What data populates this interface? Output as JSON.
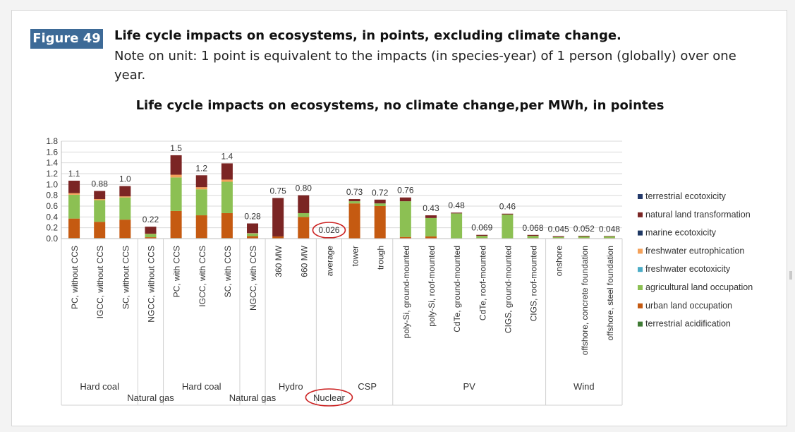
{
  "figure": {
    "badge": "Figure 49",
    "title": "Life cycle impacts on ecosystems, in points, excluding climate change.",
    "note": "Note on unit: 1 point is equivalent to the impacts (in species-year) of 1 person (globally) over one year."
  },
  "chart_data": {
    "type": "bar",
    "stacked": true,
    "title": "Life cycle impacts on ecosystems, no climate change,per MWh, in pointes",
    "ylim": [
      0,
      1.8
    ],
    "yticks": [
      "0.0",
      "0.2",
      "0.4",
      "0.6",
      "0.8",
      "1.0",
      "1.2",
      "1.4",
      "1.6",
      "1.8"
    ],
    "grid": true,
    "legend_position": "right",
    "categories": [
      "PC, without CCS",
      "IGCC, without CCS",
      "SC, without CCS",
      "NGCC, without CCS",
      "PC, with CCS",
      "IGCC, with CCS",
      "SC, with CCS",
      "NGCC, with CCS",
      "360 MW",
      "660 MW",
      "average",
      "tower",
      "trough",
      "poly-Si, ground-mounted",
      "poly-Si, roof-mounted",
      "CdTe, ground-mounted",
      "CdTe, roof-mounted",
      "CIGS, ground-mounted",
      "CIGS, roof-mounted",
      "onshore",
      "offshore, concrete foundation",
      "offshore, steel foundation"
    ],
    "totals_labels": [
      "1.1",
      "0.88",
      "1.0",
      "0.22",
      "1.5",
      "1.2",
      "1.4",
      "0.28",
      "0.75",
      "0.80",
      "0.026",
      "0.73",
      "0.72",
      "0.76",
      "0.43",
      "0.48",
      "0.069",
      "0.46",
      "0.068",
      "0.045",
      "0.052",
      "0.048"
    ],
    "highlighted_label_index": 10,
    "series": [
      {
        "name": "terrestrial acidification",
        "color": "#3f7b34",
        "values": [
          0.01,
          0.01,
          0.01,
          0.005,
          0.01,
          0.01,
          0.01,
          0.005,
          0,
          0,
          0,
          0,
          0,
          0,
          0,
          0,
          0,
          0,
          0,
          0,
          0,
          0
        ]
      },
      {
        "name": "urban land occupation",
        "color": "#c55a11",
        "values": [
          0.36,
          0.3,
          0.34,
          0.02,
          0.5,
          0.42,
          0.46,
          0.04,
          0.04,
          0.4,
          0.005,
          0.65,
          0.6,
          0.03,
          0.04,
          0.005,
          0.01,
          0.005,
          0.01,
          0.01,
          0.01,
          0.01
        ]
      },
      {
        "name": "agricultural land occupation",
        "color": "#8cc053",
        "values": [
          0.44,
          0.4,
          0.41,
          0.06,
          0.62,
          0.48,
          0.58,
          0.05,
          0,
          0.07,
          0.005,
          0.04,
          0.05,
          0.66,
          0.34,
          0.46,
          0.04,
          0.44,
          0.04,
          0.02,
          0.03,
          0.03
        ]
      },
      {
        "name": "freshwater ecotoxicity",
        "color": "#4bacc6",
        "values": [
          0,
          0,
          0,
          0,
          0,
          0,
          0,
          0,
          0,
          0,
          0,
          0,
          0,
          0,
          0,
          0,
          0,
          0,
          0,
          0,
          0,
          0
        ]
      },
      {
        "name": "freshwater eutrophication",
        "color": "#f4a15a",
        "values": [
          0.03,
          0.02,
          0.02,
          0.005,
          0.05,
          0.04,
          0.04,
          0.005,
          0,
          0,
          0,
          0,
          0,
          0,
          0,
          0,
          0,
          0,
          0,
          0,
          0,
          0
        ]
      },
      {
        "name": "marine ecotoxicity",
        "color": "#1f3864",
        "values": [
          0,
          0,
          0,
          0,
          0,
          0,
          0,
          0,
          0,
          0,
          0,
          0,
          0,
          0,
          0,
          0,
          0,
          0,
          0,
          0,
          0,
          0
        ]
      },
      {
        "name": "natural land transformation",
        "color": "#7b2524",
        "values": [
          0.23,
          0.15,
          0.19,
          0.13,
          0.36,
          0.22,
          0.3,
          0.18,
          0.71,
          0.33,
          0.016,
          0.04,
          0.07,
          0.07,
          0.05,
          0.015,
          0.019,
          0.015,
          0.018,
          0.015,
          0.012,
          0.008
        ]
      },
      {
        "name": "terrestrial ecotoxicity",
        "color": "#243a6b",
        "values": [
          0,
          0,
          0,
          0,
          0,
          0,
          0,
          0,
          0,
          0,
          0,
          0,
          0,
          0,
          0,
          0,
          0,
          0,
          0,
          0,
          0,
          0
        ]
      }
    ],
    "legend_order": [
      7,
      6,
      5,
      4,
      3,
      2,
      1,
      0
    ],
    "groups": [
      {
        "label": "Hard coal",
        "start": 0,
        "end": 2,
        "row": 1
      },
      {
        "label": "Natural gas",
        "start": 3,
        "end": 3,
        "row": 2
      },
      {
        "label": "Hard coal",
        "start": 4,
        "end": 6,
        "row": 1
      },
      {
        "label": "Natural gas",
        "start": 7,
        "end": 7,
        "row": 2
      },
      {
        "label": "Hydro",
        "start": 8,
        "end": 9,
        "row": 1
      },
      {
        "label": "Nuclear",
        "start": 10,
        "end": 10,
        "row": 2,
        "highlighted": true
      },
      {
        "label": "CSP",
        "start": 11,
        "end": 12,
        "row": 1
      },
      {
        "label": "PV",
        "start": 13,
        "end": 18,
        "row": 1
      },
      {
        "label": "Wind",
        "start": 19,
        "end": 21,
        "row": 1
      }
    ],
    "highlight_color": "#cc2222",
    "grid_color": "#d9d9d9",
    "text_color": "#333333"
  }
}
